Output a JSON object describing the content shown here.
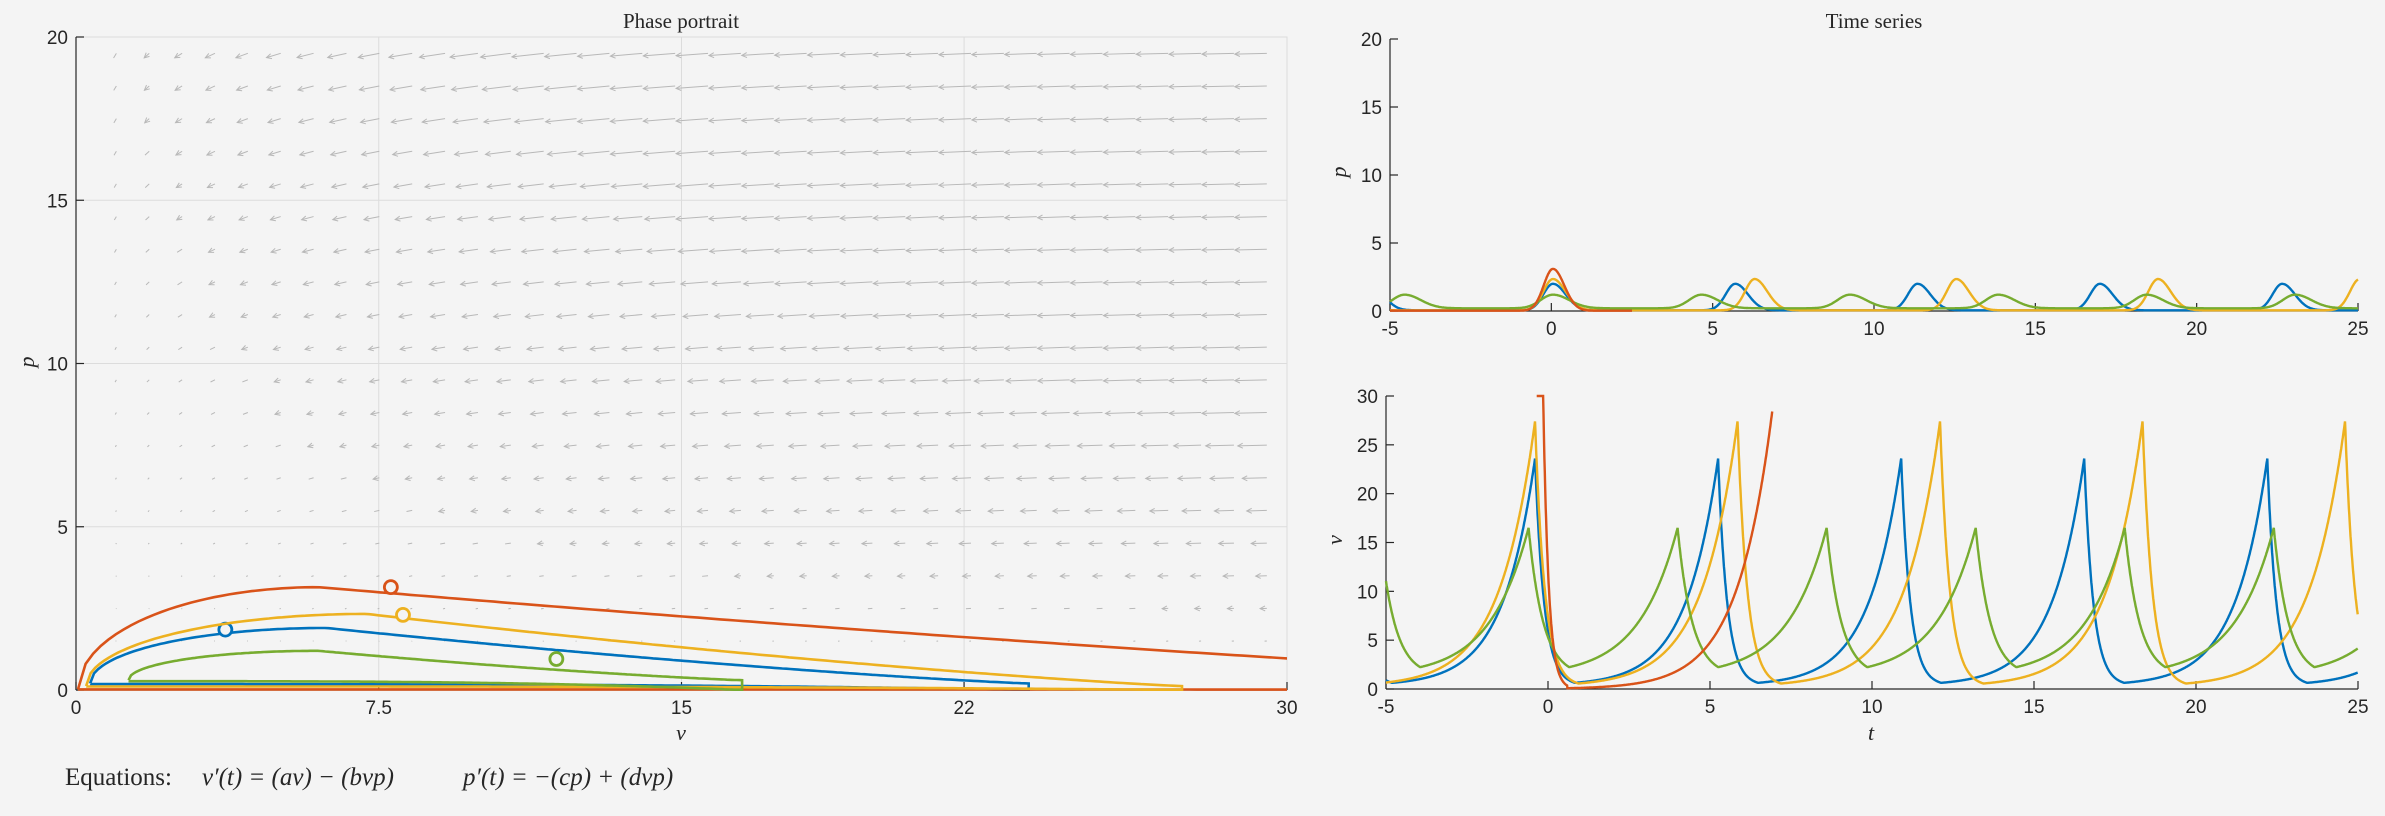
{
  "chart_data": [
    {
      "id": "phase",
      "type": "line",
      "title": "Phase portrait",
      "xlabel": "v",
      "ylabel": "p",
      "xlim": [
        0,
        30
      ],
      "ylim": [
        0,
        20
      ],
      "xticks": [
        0,
        7.5,
        15,
        22,
        30
      ],
      "xtick_labels": [
        "0",
        "7.5",
        "15",
        "22",
        "30"
      ],
      "yticks": [
        0,
        5,
        10,
        15,
        20
      ],
      "ytick_labels": [
        "0",
        "5",
        "10",
        "15",
        "20"
      ],
      "grid": true,
      "quiver": true,
      "series": [
        {
          "color": "#0072bd",
          "marker": [
            3.7,
            1.85
          ],
          "orbit": {
            "vmin": 0.35,
            "vmax": 23.6,
            "ptop": 1.9,
            "pbot": 0.2,
            "vpeak": 6.2
          }
        },
        {
          "color": "#d95319",
          "marker": [
            7.8,
            3.15
          ],
          "orbit": {
            "vmin": 0.05,
            "vmax": 45,
            "ptop": 3.15,
            "pbot": 0.02,
            "vpeak": 6.0
          }
        },
        {
          "color": "#edb120",
          "marker": [
            8.1,
            2.3
          ],
          "orbit": {
            "vmin": 0.25,
            "vmax": 27.4,
            "ptop": 2.33,
            "pbot": 0.12,
            "vpeak": 7.2
          }
        },
        {
          "color": "#77ac30",
          "marker": [
            11.9,
            0.95
          ],
          "orbit": {
            "vmin": 1.3,
            "vmax": 16.5,
            "ptop": 1.2,
            "pbot": 0.3,
            "vpeak": 6.0
          }
        }
      ]
    },
    {
      "id": "p-time",
      "type": "line",
      "title": "Time series",
      "xlabel": "",
      "ylabel": "p",
      "xlim": [
        -5,
        25
      ],
      "ylim": [
        0,
        20
      ],
      "xticks": [
        -5,
        0,
        5,
        10,
        15,
        20,
        25
      ],
      "xtick_labels": [
        "-5",
        "0",
        "5",
        "10",
        "15",
        "20",
        "25"
      ],
      "yticks": [
        0,
        5,
        10,
        15,
        20
      ],
      "ytick_labels": [
        "0",
        "5",
        "10",
        "15",
        "20"
      ],
      "series": [
        {
          "color": "#0072bd",
          "period": 5.65,
          "peak_t": 0.05,
          "p_peak": 2.0,
          "p_base": 0.05,
          "width": 0.35
        },
        {
          "color": "#edb120",
          "period": 6.25,
          "peak_t": 6.3,
          "p_peak": 2.35,
          "p_base": 0.05,
          "width": 0.35
        },
        {
          "color": "#77ac30",
          "period": 4.6,
          "peak_t": 0.05,
          "p_peak": 1.2,
          "p_base": 0.2,
          "width": 0.45
        },
        {
          "color": "#d95319",
          "single": true,
          "peak_t": 0.05,
          "p_peak": 3.1,
          "p_base": 0.02,
          "width": 0.35
        }
      ]
    },
    {
      "id": "v-time",
      "type": "line",
      "title": "",
      "xlabel": "t",
      "ylabel": "v",
      "xlim": [
        -5,
        25
      ],
      "ylim": [
        0,
        30
      ],
      "xticks": [
        -5,
        0,
        5,
        10,
        15,
        20,
        25
      ],
      "xtick_labels": [
        "-5",
        "0",
        "5",
        "10",
        "15",
        "20",
        "25"
      ],
      "yticks": [
        0,
        5,
        10,
        15,
        20,
        25,
        30
      ],
      "ytick_labels": [
        "0",
        "5",
        "10",
        "15",
        "20",
        "25",
        "30"
      ],
      "series": [
        {
          "color": "#0072bd",
          "period": 5.65,
          "peak_t": -0.4,
          "v_peak": 23.6,
          "v_min": 0.35,
          "rise": 1.0,
          "fall": 0.28
        },
        {
          "color": "#edb120",
          "period": 6.25,
          "peak_t": -0.4,
          "v_peak": 27.4,
          "v_min": 0.25,
          "rise": 1.1,
          "fall": 0.3
        },
        {
          "color": "#77ac30",
          "period": 4.6,
          "peak_t": -0.6,
          "v_peak": 16.5,
          "v_min": 1.3,
          "rise": 1.2,
          "fall": 0.45
        },
        {
          "color": "#d95319",
          "single": true,
          "peak_t": -0.15,
          "v_peak": 30,
          "v_min": 0.05,
          "grow_start": 1.0,
          "grow_end": 6.9
        }
      ]
    }
  ],
  "equations": {
    "label": "Equations:",
    "eq1": "v′(t) = (av) − (bvp)",
    "eq2": "p′(t) = −(cp) + (dvp)"
  }
}
